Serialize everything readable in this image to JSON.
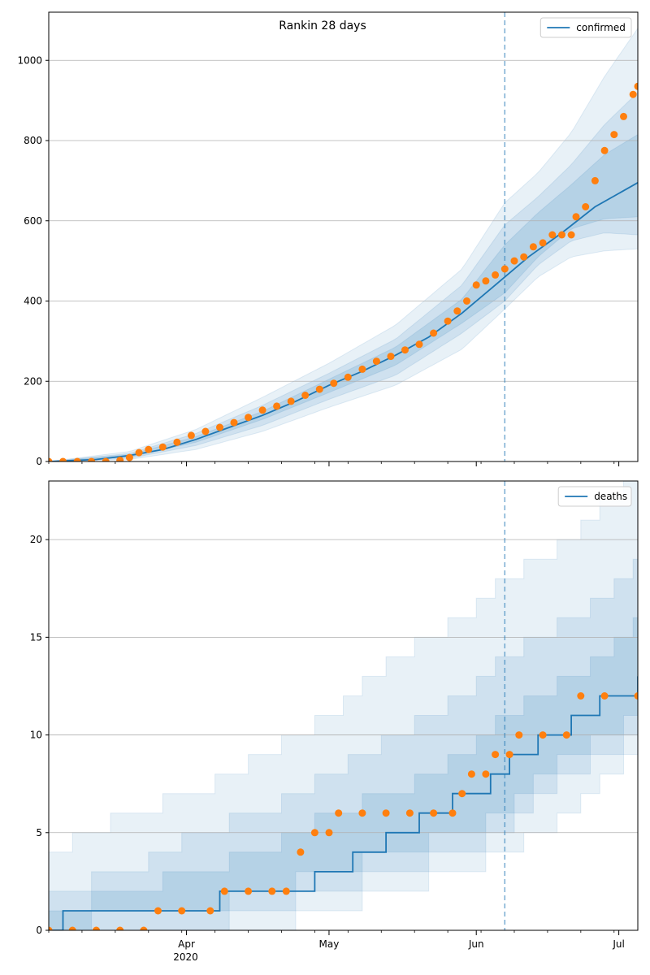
{
  "figure": {
    "title": "Rankin 28 days"
  },
  "chart_data": [
    {
      "type": "line",
      "panel": "top",
      "title": "Rankin 28 days",
      "xlabel": "",
      "ylabel": "",
      "x_range": [
        "2020-03-03",
        "2020-07-05"
      ],
      "ylim": [
        0,
        1120
      ],
      "yticks": [
        0,
        200,
        400,
        600,
        800,
        1000
      ],
      "xticks": [
        {
          "date": "2020-04-01",
          "label": "Apr",
          "sublabel": "2020"
        },
        {
          "date": "2020-05-01",
          "label": "May",
          "sublabel": ""
        },
        {
          "date": "2020-06-01",
          "label": "Jun",
          "sublabel": ""
        },
        {
          "date": "2020-07-01",
          "label": "Jul",
          "sublabel": ""
        }
      ],
      "grid": "y",
      "legend_position": "top-right",
      "forecast_start": "2020-06-07",
      "colors": {
        "fit": "#1f77b4",
        "observed": "#ff7f0e",
        "band": "#1f77b4"
      },
      "series": [
        {
          "name": "confirmed",
          "kind": "fit",
          "x": [
            "2020-03-03",
            "2020-03-13",
            "2020-03-20",
            "2020-03-27",
            "2020-04-03",
            "2020-04-10",
            "2020-04-17",
            "2020-04-24",
            "2020-05-01",
            "2020-05-08",
            "2020-05-15",
            "2020-05-22",
            "2020-05-29",
            "2020-06-05",
            "2020-06-12",
            "2020-06-19",
            "2020-06-26",
            "2020-07-05"
          ],
          "y": [
            0,
            5,
            15,
            30,
            55,
            85,
            115,
            150,
            190,
            225,
            265,
            310,
            370,
            440,
            510,
            570,
            635,
            695
          ]
        },
        {
          "name": "",
          "kind": "observed",
          "x": [
            "2020-03-03",
            "2020-03-06",
            "2020-03-09",
            "2020-03-12",
            "2020-03-15",
            "2020-03-18",
            "2020-03-20",
            "2020-03-22",
            "2020-03-24",
            "2020-03-27",
            "2020-03-30",
            "2020-04-02",
            "2020-04-05",
            "2020-04-08",
            "2020-04-11",
            "2020-04-14",
            "2020-04-17",
            "2020-04-20",
            "2020-04-23",
            "2020-04-26",
            "2020-04-29",
            "2020-05-02",
            "2020-05-05",
            "2020-05-08",
            "2020-05-11",
            "2020-05-14",
            "2020-05-17",
            "2020-05-20",
            "2020-05-23",
            "2020-05-26",
            "2020-05-28",
            "2020-05-30",
            "2020-06-01",
            "2020-06-03",
            "2020-06-05",
            "2020-06-07",
            "2020-06-09",
            "2020-06-11",
            "2020-06-13",
            "2020-06-15",
            "2020-06-17",
            "2020-06-19",
            "2020-06-21",
            "2020-06-22",
            "2020-06-24",
            "2020-06-26",
            "2020-06-28",
            "2020-06-30",
            "2020-07-02",
            "2020-07-04",
            "2020-07-05"
          ],
          "y": [
            0,
            0,
            0,
            0,
            0,
            3,
            10,
            22,
            30,
            36,
            48,
            65,
            75,
            85,
            97,
            110,
            128,
            138,
            150,
            165,
            180,
            195,
            210,
            230,
            250,
            262,
            278,
            292,
            320,
            350,
            375,
            400,
            440,
            450,
            465,
            480,
            500,
            510,
            535,
            545,
            565,
            565,
            565,
            610,
            635,
            700,
            775,
            815,
            860,
            915,
            935
          ]
        }
      ],
      "bands": [
        {
          "level": "outer",
          "x": [
            "2020-03-03",
            "2020-03-20",
            "2020-04-03",
            "2020-04-17",
            "2020-05-01",
            "2020-05-15",
            "2020-05-29",
            "2020-06-07",
            "2020-06-14",
            "2020-06-21",
            "2020-06-28",
            "2020-07-05"
          ],
          "low": [
            0,
            5,
            30,
            75,
            135,
            190,
            280,
            380,
            460,
            510,
            525,
            530
          ],
          "high": [
            0,
            25,
            80,
            160,
            245,
            340,
            480,
            645,
            720,
            820,
            960,
            1080
          ]
        },
        {
          "level": "middle",
          "x": [
            "2020-03-03",
            "2020-03-20",
            "2020-04-03",
            "2020-04-17",
            "2020-05-01",
            "2020-05-15",
            "2020-05-29",
            "2020-06-07",
            "2020-06-14",
            "2020-06-21",
            "2020-06-28",
            "2020-07-05"
          ],
          "low": [
            0,
            8,
            40,
            90,
            155,
            215,
            320,
            400,
            490,
            550,
            570,
            565
          ],
          "high": [
            0,
            20,
            70,
            140,
            220,
            305,
            440,
            590,
            660,
            740,
            840,
            920
          ]
        },
        {
          "level": "inner",
          "x": [
            "2020-03-03",
            "2020-03-20",
            "2020-04-03",
            "2020-04-17",
            "2020-05-01",
            "2020-05-15",
            "2020-05-29",
            "2020-06-07",
            "2020-06-14",
            "2020-06-21",
            "2020-06-28",
            "2020-07-05"
          ],
          "low": [
            0,
            11,
            48,
            105,
            172,
            240,
            345,
            420,
            510,
            580,
            605,
            610
          ],
          "high": [
            0,
            17,
            62,
            125,
            205,
            285,
            405,
            540,
            620,
            690,
            765,
            815
          ]
        }
      ]
    },
    {
      "type": "line",
      "panel": "bottom",
      "title": "",
      "xlabel": "",
      "ylabel": "",
      "x_range": [
        "2020-03-03",
        "2020-07-05"
      ],
      "ylim": [
        0,
        23
      ],
      "yticks": [
        0,
        5,
        10,
        15,
        20
      ],
      "xticks": [
        {
          "date": "2020-04-01",
          "label": "Apr",
          "sublabel": "2020"
        },
        {
          "date": "2020-05-01",
          "label": "May",
          "sublabel": ""
        },
        {
          "date": "2020-06-01",
          "label": "Jun",
          "sublabel": ""
        },
        {
          "date": "2020-07-01",
          "label": "Jul",
          "sublabel": ""
        }
      ],
      "grid": "y",
      "legend_position": "top-right",
      "forecast_start": "2020-06-07",
      "colors": {
        "fit": "#1f77b4",
        "observed": "#ff7f0e",
        "band": "#1f77b4"
      },
      "series": [
        {
          "name": "deaths",
          "kind": "fit-step",
          "x": [
            "2020-03-03",
            "2020-03-06",
            "2020-03-29",
            "2020-04-08",
            "2020-04-18",
            "2020-04-28",
            "2020-05-06",
            "2020-05-13",
            "2020-05-20",
            "2020-05-27",
            "2020-06-04",
            "2020-06-08",
            "2020-06-14",
            "2020-06-21",
            "2020-06-27",
            "2020-07-05"
          ],
          "y": [
            0,
            1,
            1,
            2,
            2,
            3,
            4,
            5,
            6,
            7,
            8,
            9,
            10,
            11,
            12,
            13
          ]
        },
        {
          "name": "",
          "kind": "observed",
          "x": [
            "2020-03-03",
            "2020-03-08",
            "2020-03-13",
            "2020-03-18",
            "2020-03-23",
            "2020-03-26",
            "2020-03-31",
            "2020-04-06",
            "2020-04-09",
            "2020-04-14",
            "2020-04-19",
            "2020-04-22",
            "2020-04-25",
            "2020-04-28",
            "2020-05-01",
            "2020-05-03",
            "2020-05-08",
            "2020-05-13",
            "2020-05-18",
            "2020-05-23",
            "2020-05-27",
            "2020-05-29",
            "2020-05-31",
            "2020-06-03",
            "2020-06-05",
            "2020-06-08",
            "2020-06-10",
            "2020-06-15",
            "2020-06-20",
            "2020-06-23",
            "2020-06-28",
            "2020-07-05"
          ],
          "y": [
            0,
            0,
            0,
            0,
            0,
            1,
            1,
            1,
            2,
            2,
            2,
            2,
            4,
            5,
            5,
            6,
            6,
            6,
            6,
            6,
            6,
            7,
            8,
            8,
            9,
            9,
            10,
            10,
            10,
            12,
            12,
            12
          ]
        }
      ],
      "bands": [
        {
          "level": "outer",
          "x": [
            "2020-03-03",
            "2020-03-20",
            "2020-04-03",
            "2020-04-17",
            "2020-05-01",
            "2020-05-15",
            "2020-05-29",
            "2020-06-07",
            "2020-06-14",
            "2020-06-21",
            "2020-06-28",
            "2020-07-05"
          ],
          "low": [
            0,
            0,
            0,
            0,
            1,
            2,
            3,
            4,
            5,
            6,
            8,
            9
          ],
          "high": [
            4,
            6,
            7,
            9,
            11,
            14,
            16,
            18,
            19,
            20,
            22,
            23
          ]
        },
        {
          "level": "middle",
          "x": [
            "2020-03-03",
            "2020-03-20",
            "2020-04-03",
            "2020-04-17",
            "2020-05-01",
            "2020-05-15",
            "2020-05-29",
            "2020-06-07",
            "2020-06-14",
            "2020-06-21",
            "2020-06-28",
            "2020-07-05"
          ],
          "low": [
            0,
            0,
            0,
            1,
            2,
            3,
            4,
            5,
            7,
            8,
            9,
            10
          ],
          "high": [
            2,
            3,
            5,
            6,
            8,
            10,
            12,
            14,
            15,
            16,
            17,
            19
          ]
        },
        {
          "level": "inner",
          "x": [
            "2020-03-03",
            "2020-03-20",
            "2020-04-03",
            "2020-04-17",
            "2020-05-01",
            "2020-05-15",
            "2020-05-29",
            "2020-06-07",
            "2020-06-14",
            "2020-06-21",
            "2020-06-28",
            "2020-07-05"
          ],
          "low": [
            0,
            1,
            1,
            2,
            3,
            4,
            5,
            6,
            8,
            9,
            10,
            11
          ],
          "high": [
            1,
            2,
            3,
            4,
            6,
            7,
            9,
            11,
            12,
            13,
            14,
            16
          ]
        }
      ]
    }
  ]
}
